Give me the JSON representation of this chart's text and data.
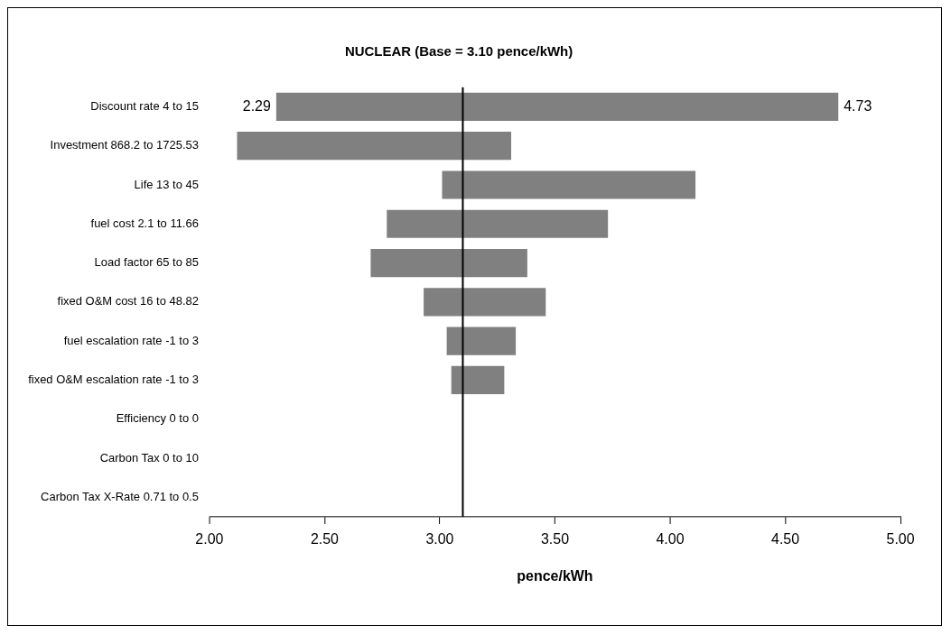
{
  "chart_data": {
    "type": "bar",
    "orientation": "horizontal",
    "title": "NUCLEAR (Base = 3.10 pence/kWh)",
    "xlabel": "pence/kWh",
    "categories": [
      "Discount rate 4 to 15",
      "Investment 868.2 to 1725.53",
      "Life 13 to 45",
      "fuel cost 2.1 to 11.66",
      "Load factor 65 to 85",
      "fixed O&M cost 16 to 48.82",
      "fuel escalation rate -1 to 3",
      "fixed O&M escalation rate -1 to 3",
      "Efficiency 0 to 0",
      "Carbon Tax 0 to 10",
      "Carbon Tax X-Rate 0.71 to 0.5"
    ],
    "base": [
      2.29,
      2.12,
      3.01,
      2.77,
      2.7,
      2.93,
      3.03,
      3.05,
      null,
      null,
      null
    ],
    "values": [
      2.44,
      1.19,
      1.1,
      0.96,
      0.68,
      0.53,
      0.3,
      0.23,
      null,
      null,
      null
    ],
    "color": "#808080",
    "xlim": [
      2,
      5
    ],
    "xticks": [
      {
        "value": 2,
        "label": "2.00"
      },
      {
        "value": 2.5,
        "label": "2.50"
      },
      {
        "value": 3,
        "label": "3.00"
      },
      {
        "value": 3.5,
        "label": "3.50"
      },
      {
        "value": 4,
        "label": "4.00"
      },
      {
        "value": 4.5,
        "label": "4.50"
      },
      {
        "value": 5,
        "label": "5.00"
      }
    ],
    "ref_lines": [
      {
        "axis": "x",
        "value": 3.1,
        "color": "#000000"
      }
    ],
    "annotations": [
      {
        "text": "2.29",
        "x": 2.29,
        "y": "Discount rate 4 to 15"
      },
      {
        "text": "4.73",
        "x": 4.73,
        "y": "Discount rate 4 to 15"
      }
    ],
    "grid": false,
    "legend": false
  }
}
